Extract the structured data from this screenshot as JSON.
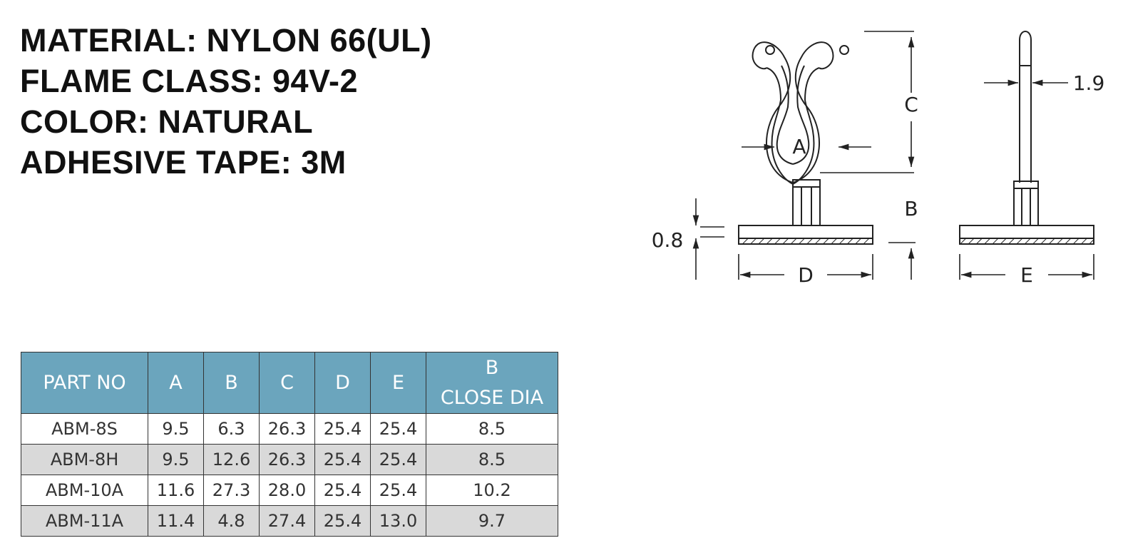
{
  "specs": [
    "MATERIAL: NYLON 66(UL)",
    "FLAME CLASS: 94V-2",
    "COLOR: NATURAL",
    "ADHESIVE TAPE: 3M"
  ],
  "drawing": {
    "labels": {
      "a": "A",
      "b": "B",
      "c": "C",
      "d": "D",
      "e": "E",
      "thickness": "0.8",
      "side_width": "1.9"
    }
  },
  "table": {
    "headers": [
      "PART NO",
      "A",
      "B",
      "C",
      "D",
      "E"
    ],
    "last_header_line1": "B",
    "last_header_line2": "CLOSE DIA",
    "rows": [
      [
        "ABM-8S",
        "9.5",
        "6.3",
        "26.3",
        "25.4",
        "25.4",
        "8.5"
      ],
      [
        "ABM-8H",
        "9.5",
        "12.6",
        "26.3",
        "25.4",
        "25.4",
        "8.5"
      ],
      [
        "ABM-10A",
        "11.6",
        "27.3",
        "28.0",
        "25.4",
        "25.4",
        "10.2"
      ],
      [
        "ABM-11A",
        "11.4",
        "4.8",
        "27.4",
        "25.4",
        "13.0",
        "9.7"
      ]
    ]
  },
  "colors": {
    "header_bg": "#6ba5bd",
    "alt_row_bg": "#d9d9d9"
  }
}
